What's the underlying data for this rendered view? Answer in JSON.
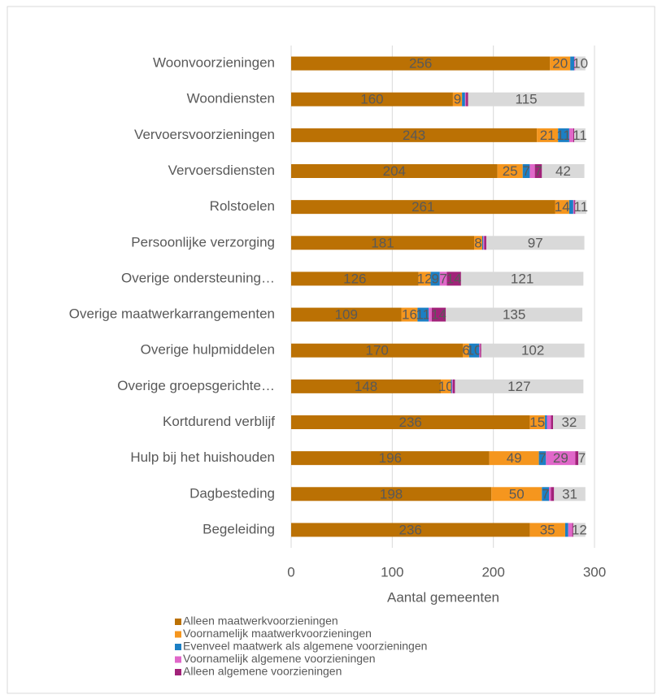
{
  "chart_data": {
    "type": "stacked-barh",
    "categories": [
      "Woonvoorzieningen",
      "Woondiensten",
      "Vervoersvoorzieningen",
      "Vervoersdiensten",
      "Rolstoelen",
      "Persoonlijke verzorging",
      "Overige ondersteuning…",
      "Overige maatwerkarrangementen",
      "Overige hulpmiddelen",
      "Overige groepsgerichte…",
      "Kortdurend verblijf",
      "Hulp bij het huishouden",
      "Dagbesteding",
      "Begeleiding"
    ],
    "series": [
      {
        "name": "Alleen maatwerkvoorzieningen",
        "color": "#bb7104",
        "values": [
          256,
          160,
          243,
          204,
          261,
          181,
          126,
          109,
          170,
          148,
          236,
          196,
          198,
          236
        ]
      },
      {
        "name": "Voornamelijk maatwerkvoorzieningen",
        "color": "#f5961e",
        "values": [
          20,
          9,
          21,
          25,
          14,
          8,
          12,
          16,
          6,
          10,
          15,
          49,
          50,
          35
        ]
      },
      {
        "name": "Evenveel maatwerk als algemene voorzieningen",
        "color": "#1b7fc4",
        "values": [
          4,
          3,
          11,
          7,
          4,
          1,
          9,
          11,
          10,
          1,
          2,
          7,
          7,
          3
        ]
      },
      {
        "name": "Voornamelijk algemene voorzieningen",
        "color": "#e067c9",
        "values": [
          1,
          1,
          4,
          5,
          1,
          1,
          7,
          3,
          1,
          1,
          4,
          29,
          2,
          4
        ]
      },
      {
        "name": "Alleen algemene voorzieningen",
        "color": "#a12279",
        "values": [
          0,
          2,
          1,
          7,
          1,
          2,
          14,
          14,
          1,
          2,
          2,
          3,
          3,
          1
        ]
      },
      {
        "color": "#d9d9d9",
        "values": [
          10,
          115,
          11,
          42,
          11,
          97,
          121,
          135,
          102,
          127,
          32,
          7,
          31,
          12
        ]
      }
    ],
    "x_label": "Aantal gemeenten",
    "xlim": [
      0,
      300
    ],
    "xticks": [
      0,
      100,
      200,
      300
    ],
    "grid": true,
    "legend": "bottom"
  }
}
